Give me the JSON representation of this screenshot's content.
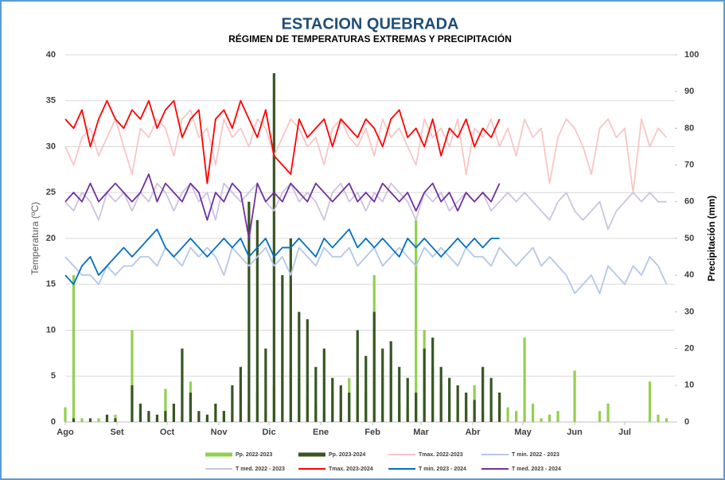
{
  "chart_data": {
    "type": "combo",
    "title": "ESTACION QUEBRADA",
    "subtitle": "RÉGIMEN DE TEMPERATURAS EXTREMAS Y PRECIPITACIÓN",
    "y_label": "Temperatura (ºC)",
    "y2_label": "Precipitación (mm)",
    "grid": true,
    "legend_position": "bottom",
    "xlim": [
      0,
      365
    ],
    "xticks": [
      {
        "value": 0,
        "label": "Ago"
      },
      {
        "value": 31,
        "label": "Set"
      },
      {
        "value": 61,
        "label": "Oct"
      },
      {
        "value": 92,
        "label": "Nov"
      },
      {
        "value": 122,
        "label": "Dic"
      },
      {
        "value": 153,
        "label": "Ene"
      },
      {
        "value": 184,
        "label": "Feb"
      },
      {
        "value": 213,
        "label": "Mar"
      },
      {
        "value": 244,
        "label": "Abr"
      },
      {
        "value": 274,
        "label": "May"
      },
      {
        "value": 305,
        "label": "Jun"
      },
      {
        "value": 335,
        "label": "Jul"
      }
    ],
    "ylim": [
      0,
      40
    ],
    "yticks": [
      0,
      5,
      10,
      15,
      20,
      25,
      30,
      35,
      40
    ],
    "y2lim": [
      0,
      100
    ],
    "y2ticks": [
      0,
      10,
      20,
      30,
      40,
      50,
      60,
      70,
      80,
      90,
      100
    ],
    "x": [
      0,
      5,
      10,
      15,
      20,
      25,
      30,
      35,
      40,
      45,
      50,
      55,
      60,
      65,
      70,
      75,
      80,
      85,
      90,
      95,
      100,
      105,
      110,
      115,
      120,
      125,
      130,
      135,
      140,
      145,
      150,
      155,
      160,
      165,
      170,
      175,
      180,
      185,
      190,
      195,
      200,
      205,
      210,
      215,
      220,
      225,
      230,
      235,
      240,
      245,
      250,
      255,
      260,
      265,
      270,
      275,
      280,
      285,
      290,
      295,
      300,
      305,
      310,
      315,
      320,
      325,
      330,
      335,
      340,
      345,
      350,
      355,
      360
    ],
    "series": [
      {
        "name": "Pp. 2022-2023",
        "type": "bar",
        "axis": "y2",
        "color": "#92d050",
        "values": [
          4,
          40,
          1,
          0,
          1,
          0,
          2,
          0,
          25,
          3,
          2,
          1,
          9,
          3,
          2,
          11,
          2,
          1,
          5,
          3,
          2,
          9,
          5,
          8,
          3,
          10,
          25,
          15,
          12,
          7,
          5,
          3,
          8,
          6,
          12,
          10,
          8,
          40,
          12,
          18,
          5,
          4,
          55,
          25,
          15,
          10,
          8,
          6,
          4,
          10,
          3,
          2,
          8,
          4,
          3,
          23,
          5,
          1,
          2,
          3,
          0,
          14,
          0,
          0,
          3,
          5,
          0,
          0,
          0,
          0,
          11,
          2,
          1
        ]
      },
      {
        "name": "Pp. 2023-2024",
        "type": "bar",
        "axis": "y2",
        "color": "#375623",
        "values": [
          0,
          1,
          0,
          1,
          0,
          2,
          1,
          0,
          10,
          5,
          3,
          2,
          3,
          5,
          20,
          8,
          3,
          2,
          5,
          3,
          10,
          15,
          60,
          55,
          20,
          95,
          40,
          50,
          30,
          28,
          15,
          20,
          12,
          10,
          8,
          25,
          18,
          30,
          20,
          22,
          15,
          12,
          8,
          20,
          23,
          15,
          12,
          10,
          8,
          6,
          15,
          12,
          8,
          null,
          null,
          null,
          null,
          null,
          null,
          null,
          null,
          null,
          null,
          null,
          null,
          null,
          null,
          null,
          null,
          null,
          null,
          null,
          null
        ]
      },
      {
        "name": "Tmax. 2022-2023",
        "type": "line",
        "color": "#f8c6c6",
        "values": [
          30,
          28,
          31,
          32,
          29,
          31,
          33,
          30,
          27,
          32,
          31,
          33,
          32,
          29,
          33,
          34,
          31,
          32,
          28,
          33,
          31,
          32,
          30,
          33,
          32,
          29,
          31,
          33,
          32,
          30,
          31,
          28,
          32,
          33,
          31,
          30,
          32,
          29,
          33,
          31,
          32,
          30,
          28,
          33,
          31,
          32,
          30,
          33,
          27,
          32,
          31,
          33,
          30,
          32,
          29,
          33,
          31,
          32,
          26,
          31,
          33,
          32,
          30,
          27,
          32,
          33,
          31,
          32,
          25,
          33,
          30,
          32,
          31
        ]
      },
      {
        "name": "T min. 2022 - 2023",
        "type": "line",
        "color": "#b4c7e7",
        "values": [
          18,
          17,
          16,
          16,
          15,
          17,
          16,
          17,
          17,
          18,
          18,
          17,
          19,
          18,
          17,
          19,
          18,
          19,
          18,
          16,
          19,
          18,
          17,
          18,
          19,
          17,
          18,
          16,
          19,
          18,
          17,
          19,
          18,
          18,
          19,
          17,
          18,
          19,
          17,
          18,
          19,
          18,
          17,
          19,
          18,
          19,
          18,
          17,
          19,
          18,
          18,
          17,
          19,
          18,
          17,
          18,
          19,
          17,
          18,
          17,
          16,
          14,
          15,
          16,
          14,
          17,
          16,
          15,
          17,
          16,
          18,
          17,
          15
        ]
      },
      {
        "name": "T med. 2022 - 2023",
        "type": "line",
        "color": "#cdc3de",
        "values": [
          24,
          23,
          25,
          24,
          22,
          25,
          24,
          25,
          23,
          25,
          24,
          26,
          25,
          23,
          25,
          26,
          24,
          25,
          22,
          26,
          25,
          24,
          25,
          26,
          24,
          23,
          25,
          26,
          24,
          25,
          24,
          22,
          25,
          26,
          24,
          25,
          23,
          25,
          24,
          26,
          25,
          24,
          22,
          25,
          24,
          25,
          23,
          24,
          25,
          24,
          25,
          23,
          24,
          25,
          24,
          25,
          24,
          23,
          22,
          24,
          25,
          23,
          22,
          23,
          24,
          21,
          23,
          24,
          25,
          24,
          25,
          24,
          24
        ]
      },
      {
        "name": "Tmax. 2023-2024",
        "type": "line",
        "color": "#ff0000",
        "values": [
          33,
          32,
          34,
          30,
          33,
          35,
          33,
          32,
          34,
          33,
          35,
          32,
          34,
          35,
          31,
          33,
          34,
          26,
          33,
          34,
          32,
          35,
          33,
          31,
          34,
          29,
          28,
          27,
          33,
          31,
          32,
          33,
          30,
          33,
          32,
          31,
          33,
          32,
          30,
          33,
          34,
          31,
          32,
          30,
          33,
          29,
          32,
          31,
          33,
          30,
          32,
          31,
          33,
          null,
          null,
          null,
          null,
          null,
          null,
          null,
          null,
          null,
          null,
          null,
          null,
          null,
          null,
          null,
          null,
          null,
          null,
          null,
          null
        ]
      },
      {
        "name": "T min. 2023 - 2024",
        "type": "line",
        "color": "#0070c0",
        "values": [
          16,
          15,
          17,
          18,
          16,
          17,
          18,
          19,
          18,
          19,
          20,
          21,
          19,
          18,
          19,
          20,
          19,
          18,
          19,
          20,
          19,
          20,
          18,
          19,
          20,
          18,
          19,
          19,
          20,
          19,
          18,
          20,
          19,
          20,
          21,
          19,
          20,
          19,
          20,
          19,
          18,
          20,
          19,
          20,
          19,
          18,
          19,
          20,
          19,
          20,
          19,
          20,
          20,
          null,
          null,
          null,
          null,
          null,
          null,
          null,
          null,
          null,
          null,
          null,
          null,
          null,
          null,
          null,
          null,
          null,
          null,
          null,
          null
        ]
      },
      {
        "name": "T med. 2023 - 2024",
        "type": "line",
        "color": "#7030a0",
        "values": [
          24,
          25,
          24,
          26,
          24,
          25,
          26,
          25,
          24,
          25,
          27,
          24,
          26,
          25,
          24,
          26,
          25,
          22,
          25,
          24,
          26,
          25,
          20,
          26,
          24,
          25,
          24,
          26,
          25,
          24,
          26,
          25,
          24,
          25,
          26,
          24,
          25,
          24,
          26,
          25,
          24,
          25,
          23,
          25,
          26,
          24,
          25,
          23,
          25,
          24,
          25,
          24,
          26,
          null,
          null,
          null,
          null,
          null,
          null,
          null,
          null,
          null,
          null,
          null,
          null,
          null,
          null,
          null,
          null,
          null,
          null,
          null,
          null
        ]
      }
    ]
  }
}
